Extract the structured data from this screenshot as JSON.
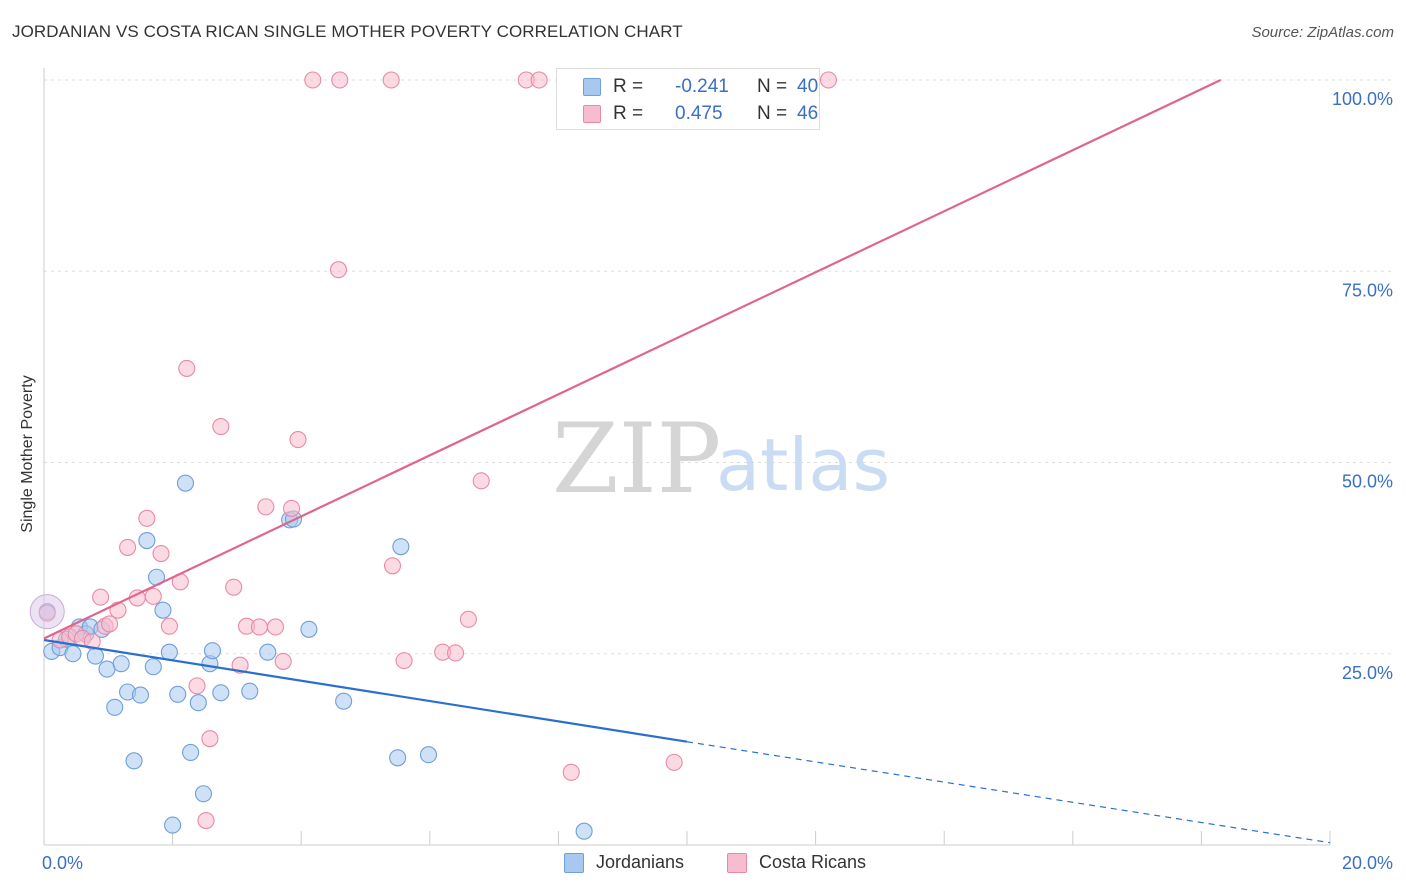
{
  "title": "JORDANIAN VS COSTA RICAN SINGLE MOTHER POVERTY CORRELATION CHART",
  "source": "Source: ZipAtlas.com",
  "watermark": {
    "zip": "ZIP",
    "atlas": "atlas"
  },
  "legend_top": {
    "rows": [
      {
        "r_label": "R =",
        "r_value": "-0.241",
        "n_label": "N =",
        "n_value": "40",
        "color": "#a8c8f0",
        "border": "#6f9fd8"
      },
      {
        "r_label": "R =",
        "r_value": "0.475",
        "n_label": "N =",
        "n_value": "46",
        "color": "#f7bccd",
        "border": "#e88aa6"
      }
    ]
  },
  "legend_bottom": [
    {
      "label": "Jordanians",
      "color": "#a8c8f0",
      "border": "#6f9fd8"
    },
    {
      "label": "Costa Ricans",
      "color": "#f7bccd",
      "border": "#e88aa6"
    }
  ],
  "chart_data": {
    "type": "scatter",
    "title": "JORDANIAN VS COSTA RICAN SINGLE MOTHER POVERTY CORRELATION CHART",
    "xlabel": "",
    "ylabel": "Single Mother Poverty",
    "xlim": [
      0,
      20
    ],
    "ylim": [
      0,
      100
    ],
    "x_tick_labels": [
      {
        "value": 0,
        "label": "0.0%"
      },
      {
        "value": 20,
        "label": "20.0%"
      }
    ],
    "y_tick_labels": [
      {
        "value": 25,
        "label": "25.0%"
      },
      {
        "value": 50,
        "label": "50.0%"
      },
      {
        "value": 75,
        "label": "75.0%"
      },
      {
        "value": 100,
        "label": "100.0%"
      }
    ],
    "grid": true,
    "legend_position": "bottom",
    "series": [
      {
        "name": "Jordanians",
        "color": "#6f9fd8",
        "fill": "#a8c8f0",
        "trend": {
          "x0": 0,
          "y0": 26.8,
          "x1": 10,
          "y1": 13.5,
          "dashed_to_x": 20,
          "dashed_to_y": 0.3,
          "color": "#2a6fcf"
        },
        "points": [
          [
            0.12,
            25.3
          ],
          [
            0.25,
            25.8
          ],
          [
            0.35,
            26.9
          ],
          [
            0.45,
            25.0
          ],
          [
            0.55,
            28.5
          ],
          [
            0.65,
            27.6
          ],
          [
            0.72,
            28.5
          ],
          [
            0.8,
            24.7
          ],
          [
            0.9,
            28.2
          ],
          [
            0.98,
            23.0
          ],
          [
            1.1,
            18.0
          ],
          [
            1.2,
            23.7
          ],
          [
            1.3,
            20.0
          ],
          [
            1.4,
            11.0
          ],
          [
            1.5,
            19.6
          ],
          [
            1.6,
            39.8
          ],
          [
            1.7,
            23.3
          ],
          [
            1.75,
            35.0
          ],
          [
            1.85,
            30.7
          ],
          [
            1.95,
            25.2
          ],
          [
            2.0,
            2.6
          ],
          [
            2.08,
            19.7
          ],
          [
            2.2,
            47.3
          ],
          [
            2.28,
            12.1
          ],
          [
            2.4,
            18.6
          ],
          [
            2.48,
            6.7
          ],
          [
            2.58,
            23.7
          ],
          [
            2.62,
            25.4
          ],
          [
            2.75,
            19.9
          ],
          [
            3.2,
            20.1
          ],
          [
            3.48,
            25.2
          ],
          [
            3.82,
            42.5
          ],
          [
            3.88,
            42.6
          ],
          [
            4.12,
            28.2
          ],
          [
            4.66,
            18.8
          ],
          [
            5.5,
            11.4
          ],
          [
            5.55,
            39.0
          ],
          [
            5.98,
            11.8
          ],
          [
            8.4,
            1.8
          ],
          [
            0.05,
            30.5
          ]
        ]
      },
      {
        "name": "Costa Ricans",
        "color": "#e88aa6",
        "fill": "#f7bccd",
        "trend": {
          "x0": 0,
          "y0": 27.0,
          "x1": 18.3,
          "y1": 100.0,
          "color": "#e0658b"
        },
        "points": [
          [
            0.05,
            30.3
          ],
          [
            0.25,
            26.8
          ],
          [
            0.4,
            27.2
          ],
          [
            0.5,
            27.6
          ],
          [
            0.6,
            27.0
          ],
          [
            0.75,
            26.6
          ],
          [
            0.88,
            32.4
          ],
          [
            0.95,
            28.6
          ],
          [
            1.02,
            28.9
          ],
          [
            1.15,
            30.7
          ],
          [
            1.3,
            38.9
          ],
          [
            1.45,
            32.3
          ],
          [
            1.6,
            42.7
          ],
          [
            1.7,
            32.5
          ],
          [
            1.82,
            38.1
          ],
          [
            1.95,
            28.6
          ],
          [
            2.12,
            34.4
          ],
          [
            2.22,
            62.3
          ],
          [
            2.38,
            20.8
          ],
          [
            2.58,
            13.9
          ],
          [
            2.52,
            3.2
          ],
          [
            2.75,
            54.7
          ],
          [
            2.95,
            33.7
          ],
          [
            3.05,
            23.5
          ],
          [
            3.15,
            28.6
          ],
          [
            3.45,
            44.2
          ],
          [
            3.35,
            28.5
          ],
          [
            3.6,
            28.5
          ],
          [
            3.72,
            24.0
          ],
          [
            3.85,
            44.0
          ],
          [
            3.95,
            53.0
          ],
          [
            4.18,
            100.0
          ],
          [
            4.58,
            75.2
          ],
          [
            4.6,
            100.0
          ],
          [
            5.42,
            36.5
          ],
          [
            5.4,
            100.0
          ],
          [
            5.6,
            24.1
          ],
          [
            6.2,
            25.2
          ],
          [
            6.4,
            25.1
          ],
          [
            6.6,
            29.5
          ],
          [
            6.8,
            47.6
          ],
          [
            7.5,
            100.0
          ],
          [
            7.7,
            100.0
          ],
          [
            8.2,
            9.5
          ],
          [
            9.8,
            10.8
          ],
          [
            12.2,
            100.0
          ]
        ]
      }
    ]
  }
}
